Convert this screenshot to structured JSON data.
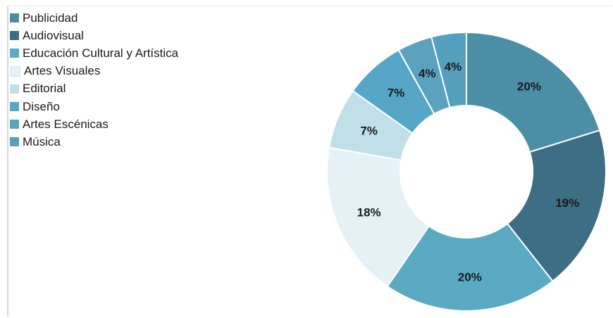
{
  "chart_data": {
    "type": "pie",
    "variant": "donut",
    "title": "",
    "legend_position": "top-left",
    "categories": [
      "Publicidad",
      "Audiovisual",
      "Educación Cultural y Artística",
      "Artes Visuales",
      "Editorial",
      "Diseño",
      "Artes Escénicas",
      "Música"
    ],
    "values": [
      20,
      19,
      20,
      18,
      7,
      7,
      4,
      4
    ],
    "labels": [
      "20%",
      "19%",
      "20%",
      "18%",
      "7%",
      "7%",
      "4%",
      "4%"
    ],
    "colors": [
      "#4a8fa6",
      "#3e6e83",
      "#5aaac4",
      "#e6f1f6",
      "#c0dfe9",
      "#56a7c7",
      "#5aa2bd",
      "#55a0bd"
    ]
  }
}
